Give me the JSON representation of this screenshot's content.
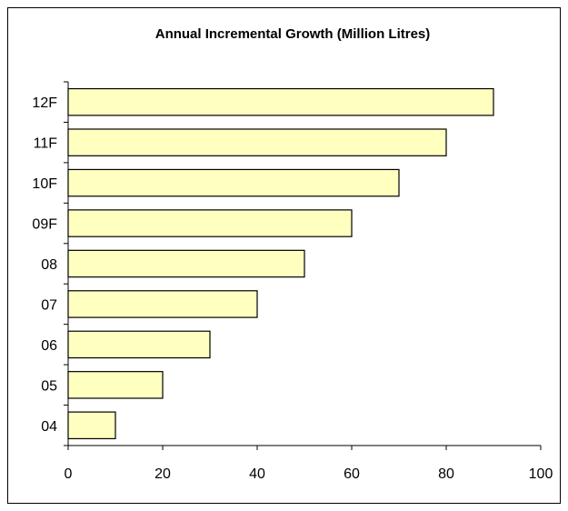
{
  "chart_data": {
    "type": "bar",
    "orientation": "horizontal",
    "title": "Annual Incremental Growth (Million Litres)",
    "xlabel": "",
    "ylabel": "",
    "categories": [
      "04",
      "05",
      "06",
      "07",
      "08",
      "09F",
      "10F",
      "11F",
      "12F"
    ],
    "values": [
      10,
      20,
      30,
      40,
      50,
      60,
      70,
      80,
      90
    ],
    "xlim": [
      0,
      100
    ],
    "xticks": [
      0,
      20,
      40,
      60,
      80,
      100
    ],
    "grid": false,
    "legend": "none",
    "bar_color": "#FFFFC0",
    "bar_edge_color": "#000000"
  }
}
